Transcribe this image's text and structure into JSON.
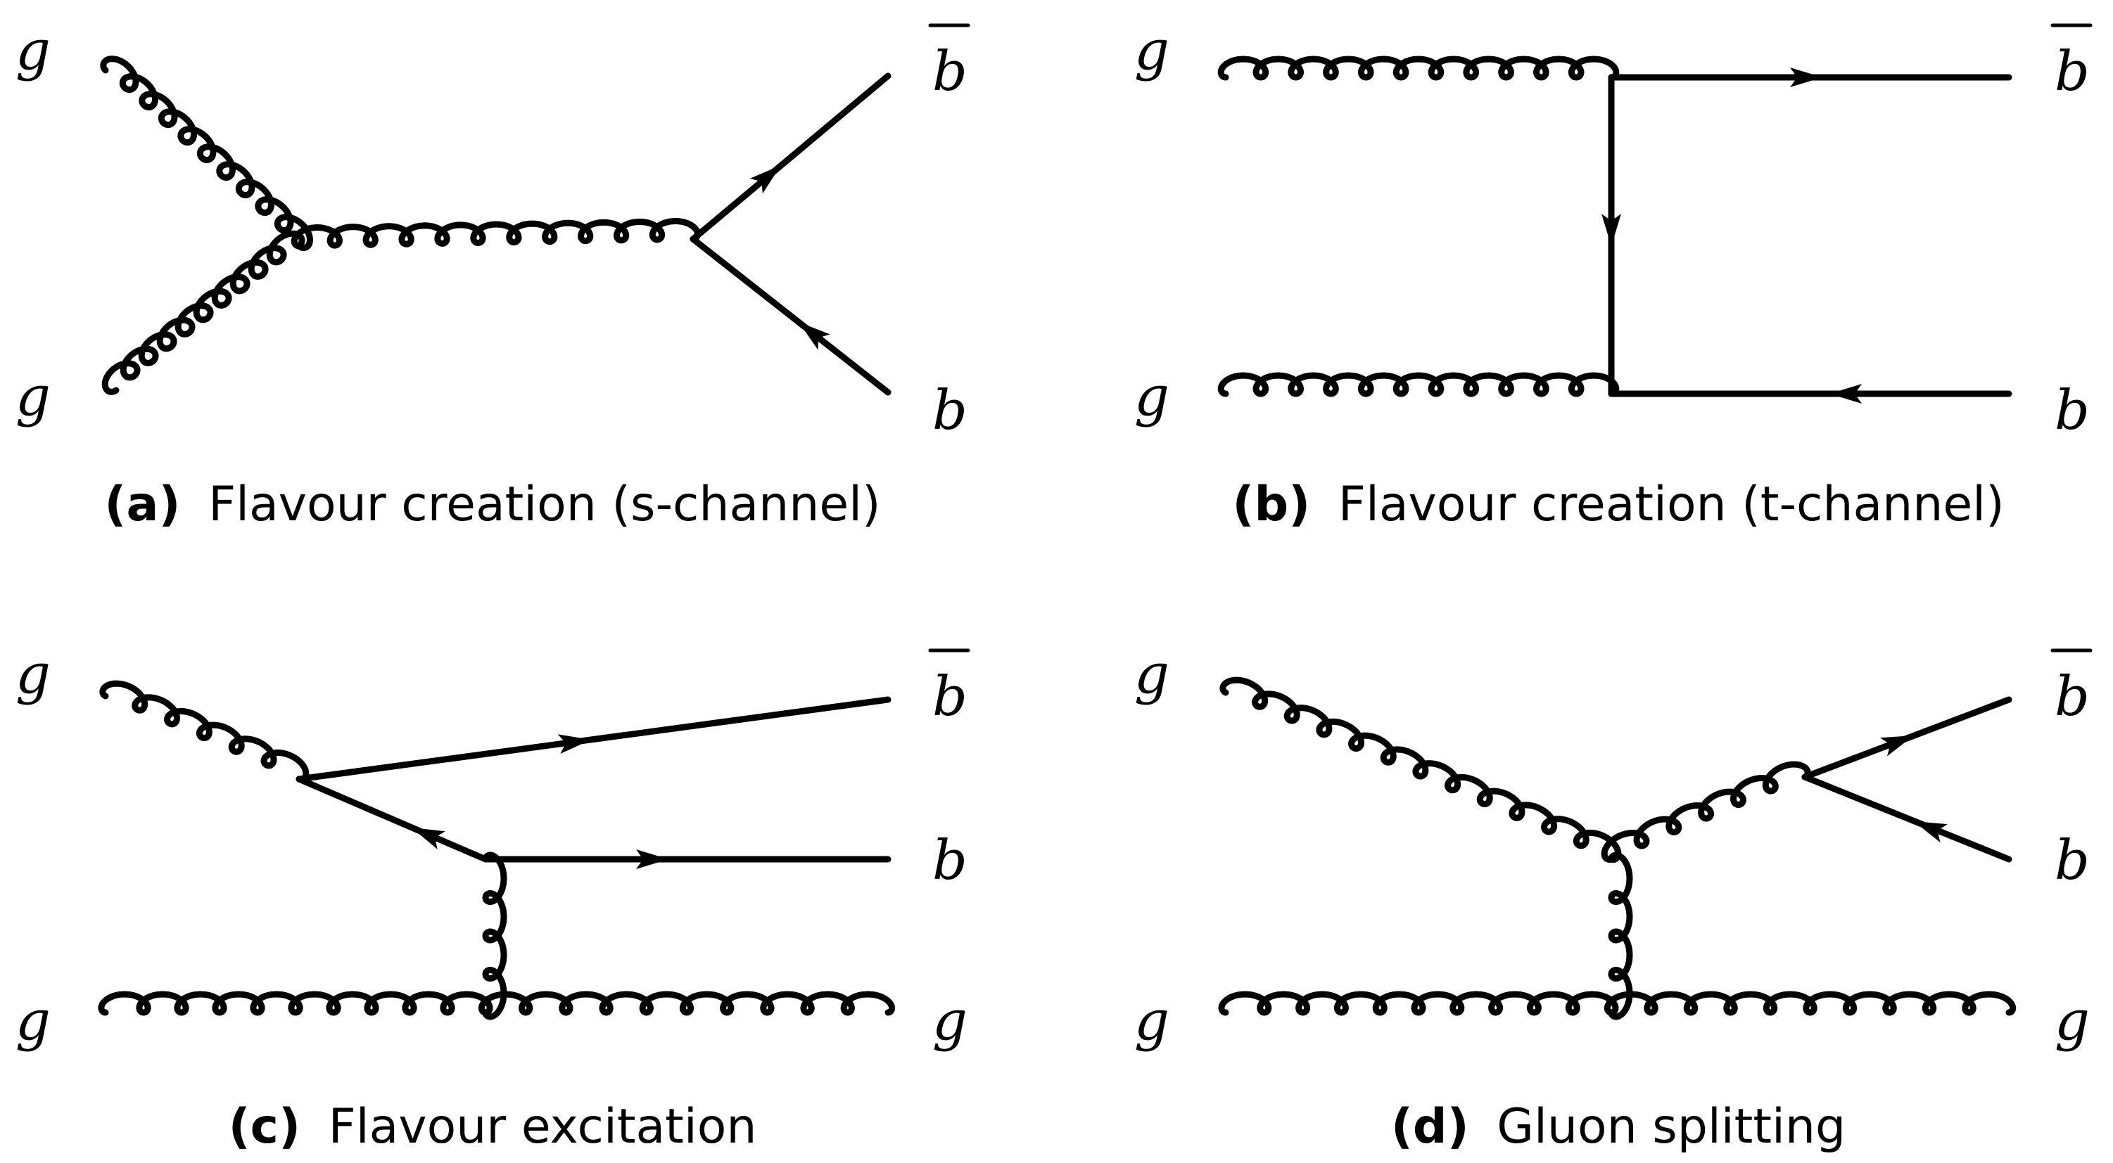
{
  "labels": {
    "g": "g",
    "b": "b",
    "bbar": "b"
  },
  "captions": {
    "a": {
      "tag": "(a)",
      "text": "Flavour creation (s-channel)"
    },
    "b": {
      "tag": "(b)",
      "text": "Flavour creation (t-channel)"
    },
    "c": {
      "tag": "(c)",
      "text": "Flavour excitation"
    },
    "d": {
      "tag": "(d)",
      "text": "Gluon splitting"
    }
  }
}
